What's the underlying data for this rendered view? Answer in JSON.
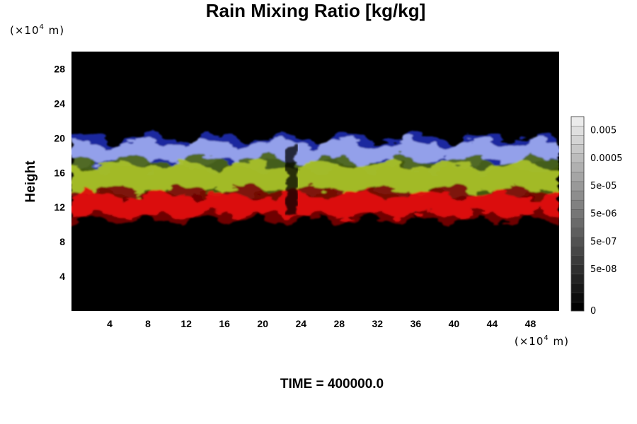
{
  "chart_data": {
    "type": "heatmap",
    "title": "Rain Mixing Ratio [kg/kg]",
    "ylabel": "Height",
    "x_unit": "(×10",
    "x_unit_exp": "4",
    "x_unit_tail": " m)",
    "y_unit": "(×10",
    "y_unit_exp": "4",
    "y_unit_tail": " m)",
    "xlim": [
      0,
      51
    ],
    "ylim": [
      0,
      30
    ],
    "x_ticks": [
      4,
      8,
      12,
      16,
      20,
      24,
      28,
      32,
      36,
      40,
      44,
      48
    ],
    "y_ticks": [
      4,
      8,
      12,
      16,
      20,
      24,
      28
    ],
    "background_color": "#000000",
    "field_layers": [
      {
        "name": "upper",
        "color": "#9aa6ee",
        "edge_color": "#1e2fb0",
        "y_range": [
          16.5,
          20
        ]
      },
      {
        "name": "middle",
        "color": "#a8c02a",
        "edge_color": "#4a6410",
        "y_range": [
          13,
          17.5
        ]
      },
      {
        "name": "lower",
        "color": "#e01010",
        "edge_color": "#7a0606",
        "y_range": [
          10.5,
          14
        ]
      }
    ],
    "colorbar": {
      "levels": 21,
      "ticks": [
        "0",
        "5e-08",
        "5e-07",
        "5e-06",
        "5e-05",
        "0.0005",
        "0.005"
      ]
    },
    "footer": "TIME = 400000.0"
  }
}
